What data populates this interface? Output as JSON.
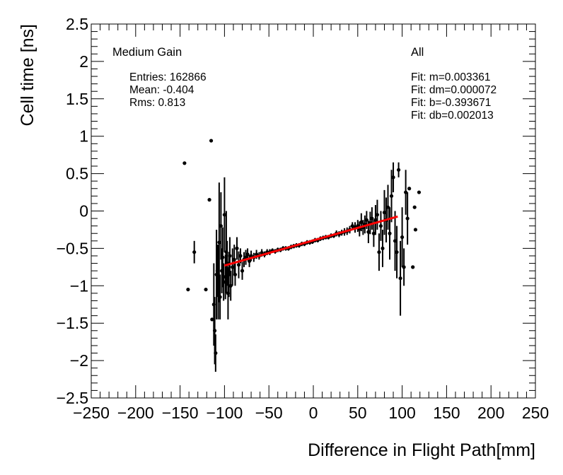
{
  "chart_data": {
    "type": "scatter",
    "xlabel": "Difference in Flight Path[mm]",
    "ylabel": "Cell time [ns]",
    "xlim": [
      -250,
      250
    ],
    "ylim": [
      -2.5,
      2.5
    ],
    "x_ticks": [
      -250,
      -200,
      -150,
      -100,
      -50,
      0,
      50,
      100,
      150,
      200,
      250
    ],
    "x_tick_labels": [
      "−250",
      "−200",
      "−150",
      "−100",
      "−50",
      "0",
      "50",
      "100",
      "150",
      "200",
      "250"
    ],
    "y_ticks": [
      -2.5,
      -2,
      -1.5,
      -1,
      -0.5,
      0,
      0.5,
      1,
      1.5,
      2,
      2.5
    ],
    "y_tick_labels": [
      "−2.5",
      "−2",
      "−1.5",
      "−1",
      "−0.5",
      "0",
      "0.5",
      "1",
      "1.5",
      "2",
      "2.5"
    ],
    "grid": false,
    "legend_left": {
      "title": "Medium Gain",
      "lines": [
        "Entries: 162866",
        "Mean: -0.404",
        "Rms: 0.813"
      ]
    },
    "legend_right": {
      "title": "All",
      "lines": [
        "Fit: m=0.003361",
        "Fit: dm=0.000072",
        "Fit: b=-0.393671",
        "Fit: db=0.002013"
      ]
    },
    "fit": {
      "m": 0.003361,
      "b": -0.393671,
      "x_range": [
        -100,
        95
      ],
      "color": "#ff0000"
    },
    "marker_color": "#000000",
    "points": [
      [
        -145,
        0.64,
        0
      ],
      [
        -141,
        -1.05,
        0
      ],
      [
        -134,
        -0.55,
        0.15
      ],
      [
        -121,
        -1.05,
        0
      ],
      [
        -117,
        0.15,
        0
      ],
      [
        -115,
        0.94,
        0
      ],
      [
        -114,
        -1.45,
        0
      ],
      [
        -112,
        -1.25,
        0.55
      ],
      [
        -111,
        -1.6,
        0.45
      ],
      [
        -110,
        -1.9,
        0.25
      ],
      [
        -109,
        -0.85,
        0.6
      ],
      [
        -108,
        -0.8,
        0.35
      ],
      [
        -107,
        -0.95,
        0.5
      ],
      [
        -106,
        -0.42,
        0.8
      ],
      [
        -105,
        -1.15,
        0.3
      ],
      [
        -104,
        -0.2,
        0.45
      ],
      [
        -103,
        -0.8,
        0.3
      ],
      [
        -102,
        -0.62,
        0.4
      ],
      [
        -101,
        -0.95,
        0.25
      ],
      [
        -100,
        -0.05,
        0.5
      ],
      [
        -99,
        -0.88,
        0.3
      ],
      [
        -98,
        -0.55,
        0.55
      ],
      [
        -97,
        -0.7,
        0.3
      ],
      [
        -96,
        -1.1,
        0.35
      ],
      [
        -95,
        -0.85,
        0.3
      ],
      [
        -94,
        -0.6,
        0.25
      ],
      [
        -93,
        -1.0,
        0.2
      ],
      [
        -91,
        -0.75,
        0.25
      ],
      [
        -89,
        -0.65,
        0.2
      ],
      [
        -88,
        -0.85,
        0.15
      ],
      [
        -86,
        -0.5,
        0.15
      ],
      [
        -84,
        -0.72,
        0.18
      ],
      [
        -82,
        -0.6,
        0.1
      ],
      [
        -80,
        -0.8,
        0.12
      ],
      [
        -78,
        -0.65,
        0.1
      ],
      [
        -76,
        -0.62,
        0.1
      ],
      [
        -74,
        -0.58,
        0.08
      ],
      [
        -72,
        -0.67,
        0.08
      ],
      [
        -70,
        -0.6,
        0.07
      ],
      [
        -67,
        -0.62,
        0.06
      ],
      [
        -64,
        -0.58,
        0.06
      ],
      [
        -61,
        -0.6,
        0.05
      ],
      [
        -58,
        -0.56,
        0.05
      ],
      [
        -55,
        -0.58,
        0.04
      ],
      [
        -52,
        -0.55,
        0.04
      ],
      [
        -49,
        -0.55,
        0.04
      ],
      [
        -46,
        -0.53,
        0.03
      ],
      [
        -43,
        -0.54,
        0.03
      ],
      [
        -40,
        -0.52,
        0.03
      ],
      [
        -37,
        -0.52,
        0.03
      ],
      [
        -34,
        -0.5,
        0.03
      ],
      [
        -31,
        -0.5,
        0.03
      ],
      [
        -28,
        -0.5,
        0.03
      ],
      [
        -25,
        -0.48,
        0.03
      ],
      [
        -22,
        -0.47,
        0.03
      ],
      [
        -19,
        -0.46,
        0.03
      ],
      [
        -16,
        -0.46,
        0.03
      ],
      [
        -13,
        -0.44,
        0.03
      ],
      [
        -10,
        -0.44,
        0.03
      ],
      [
        -7,
        -0.42,
        0.03
      ],
      [
        -4,
        -0.42,
        0.03
      ],
      [
        -1,
        -0.41,
        0.03
      ],
      [
        2,
        -0.39,
        0.03
      ],
      [
        5,
        -0.39,
        0.03
      ],
      [
        8,
        -0.37,
        0.03
      ],
      [
        11,
        -0.36,
        0.03
      ],
      [
        14,
        -0.35,
        0.03
      ],
      [
        17,
        -0.35,
        0.03
      ],
      [
        20,
        -0.33,
        0.03
      ],
      [
        23,
        -0.33,
        0.03
      ],
      [
        26,
        -0.3,
        0.04
      ],
      [
        29,
        -0.31,
        0.04
      ],
      [
        32,
        -0.29,
        0.04
      ],
      [
        35,
        -0.28,
        0.05
      ],
      [
        38,
        -0.27,
        0.05
      ],
      [
        41,
        -0.25,
        0.05
      ],
      [
        44,
        -0.2,
        0.05
      ],
      [
        47,
        -0.22,
        0.07
      ],
      [
        50,
        -0.2,
        0.08
      ],
      [
        52,
        -0.24,
        0.1
      ],
      [
        54,
        -0.15,
        0.12
      ],
      [
        56,
        -0.22,
        0.1
      ],
      [
        58,
        -0.18,
        0.12
      ],
      [
        60,
        -0.12,
        0.12
      ],
      [
        62,
        -0.28,
        0.15
      ],
      [
        64,
        -0.16,
        0.15
      ],
      [
        66,
        -0.1,
        0.15
      ],
      [
        68,
        -0.3,
        0.18
      ],
      [
        70,
        -0.12,
        0.2
      ],
      [
        72,
        -0.05,
        0.2
      ],
      [
        74,
        -0.55,
        0.25
      ],
      [
        76,
        -0.2,
        0.2
      ],
      [
        78,
        -0.5,
        0.25
      ],
      [
        80,
        -0.02,
        0.3
      ],
      [
        82,
        -0.12,
        0.3
      ],
      [
        84,
        0.05,
        0.3
      ],
      [
        86,
        -0.3,
        0.35
      ],
      [
        88,
        0.2,
        0.35
      ],
      [
        90,
        0.45,
        0.2
      ],
      [
        92,
        -0.4,
        0.4
      ],
      [
        94,
        -0.55,
        0.35
      ],
      [
        96,
        0.55,
        0.1
      ],
      [
        98,
        -0.9,
        0.5
      ],
      [
        100,
        -0.35,
        0.4
      ],
      [
        102,
        -0.75,
        0.25
      ],
      [
        104,
        0.25,
        0.3
      ],
      [
        106,
        -0.1,
        0.35
      ],
      [
        108,
        0.3,
        0
      ],
      [
        112,
        -0.75,
        0
      ],
      [
        114,
        0.05,
        0
      ],
      [
        115,
        -0.25,
        0
      ],
      [
        119,
        0.25,
        0
      ]
    ]
  }
}
